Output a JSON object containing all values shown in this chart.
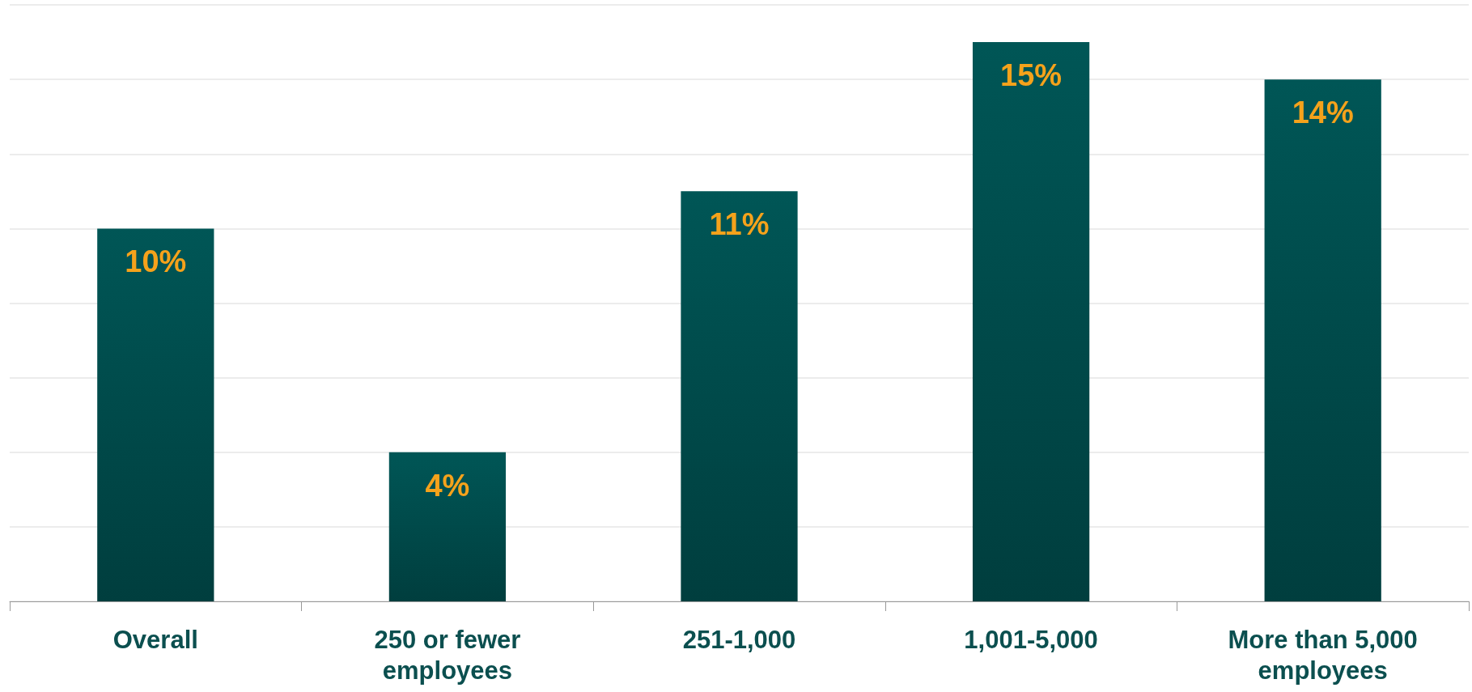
{
  "chart_data": {
    "type": "bar",
    "categories": [
      "Overall",
      "250 or fewer\nemployees",
      "251-1,000",
      "1,001-5,000",
      "More than 5,000\nemployees"
    ],
    "values": [
      10,
      4,
      11,
      15,
      14
    ],
    "value_labels": [
      "10%",
      "4%",
      "11%",
      "15%",
      "14%"
    ],
    "color": "#005656",
    "ylim": [
      0,
      16
    ],
    "yticks": [
      {
        "value": 0,
        "label": null
      },
      {
        "value": 2,
        "label": null
      },
      {
        "value": 4,
        "label": null
      },
      {
        "value": 6,
        "label": null
      },
      {
        "value": 8,
        "label": null
      },
      {
        "value": 10,
        "label": null
      },
      {
        "value": 12,
        "label": null
      },
      {
        "value": 14,
        "label": null
      },
      {
        "value": 16,
        "label": null
      }
    ],
    "grid": "y",
    "tick_labels": "x"
  }
}
